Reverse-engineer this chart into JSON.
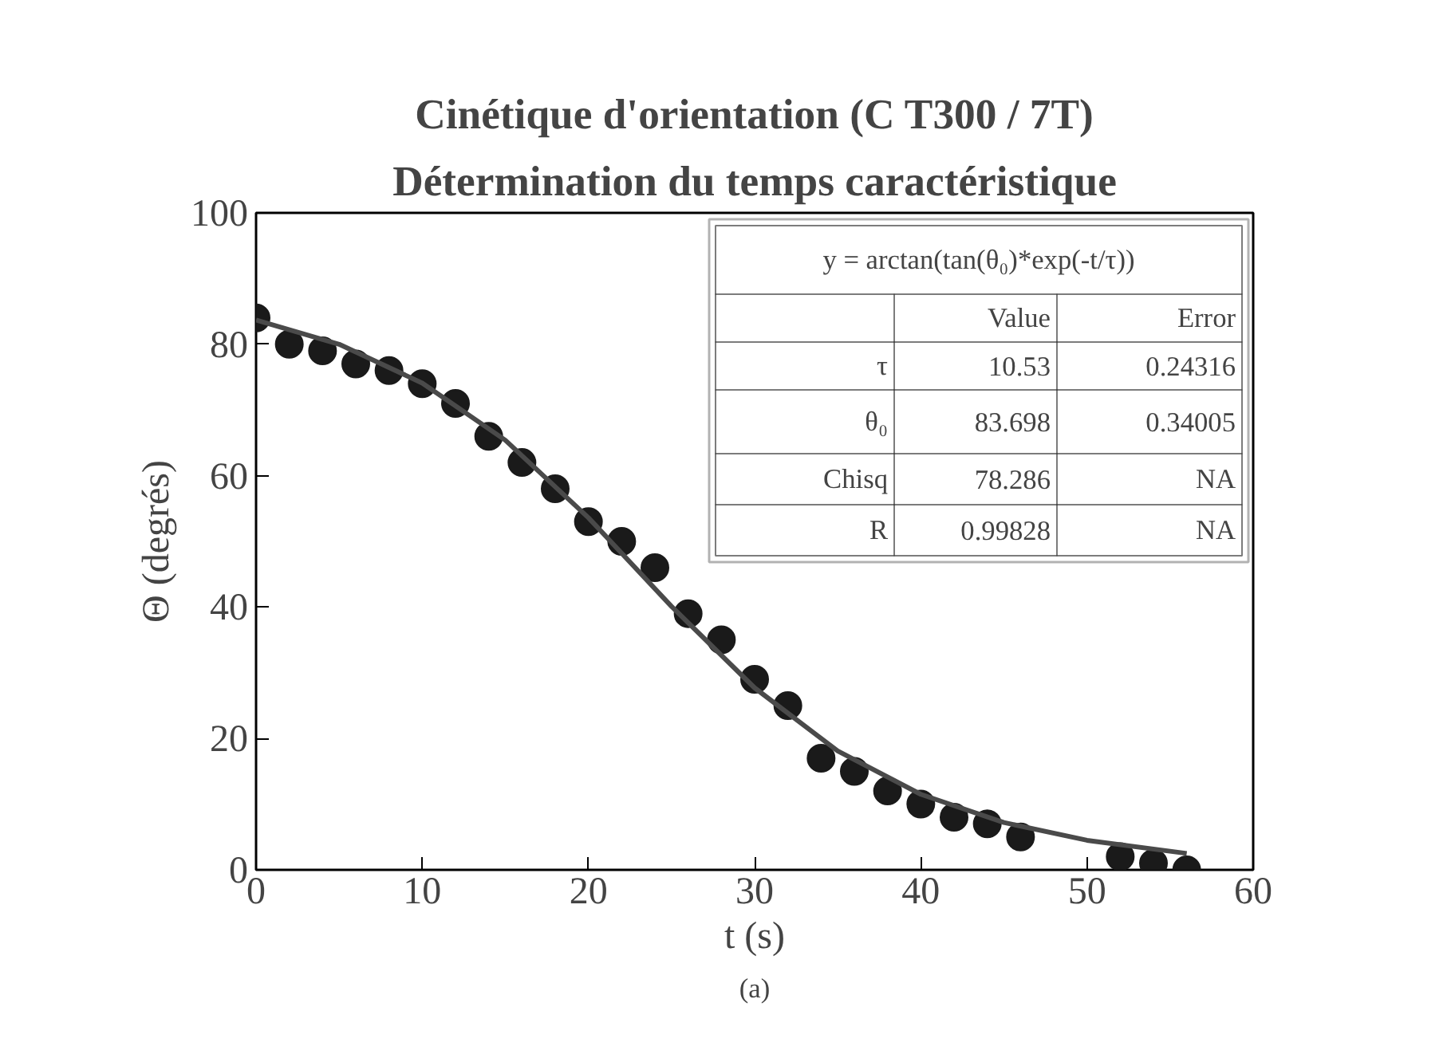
{
  "chart_data": {
    "type": "scatter",
    "title": "Cinétique d'orientation (C T300 / 7T)",
    "subtitle": "Détermination du temps caractéristique",
    "xlabel": "t (s)",
    "ylabel": "Θ (degrés)",
    "xlim": [
      0,
      60
    ],
    "xticks": [
      0,
      10,
      20,
      30,
      40,
      50,
      60
    ],
    "ylim": [
      0,
      100
    ],
    "yticks": [
      0,
      20,
      40,
      60,
      80,
      100
    ],
    "grid": false,
    "series": [
      {
        "marker": "circle",
        "color": "#1a1a1a",
        "x": [
          0,
          2,
          4,
          6,
          8,
          10,
          12,
          14,
          16,
          18,
          20,
          22,
          24,
          26,
          28,
          30,
          32,
          34,
          36,
          38,
          40,
          42,
          44,
          46,
          52,
          54,
          56
        ],
        "values": [
          84,
          80,
          79,
          77,
          76,
          74,
          71,
          66,
          62,
          58,
          53,
          50,
          46,
          39,
          35,
          29,
          25,
          17,
          15,
          12,
          10,
          8,
          7,
          5,
          2,
          1,
          0
        ]
      },
      {
        "type": "line",
        "color": "#4a4a4a",
        "x": [
          0,
          5,
          10,
          15,
          20,
          25,
          30,
          35,
          40,
          45,
          50,
          56
        ],
        "values": [
          83.7,
          80.0,
          74.1,
          65.4,
          53.6,
          40.1,
          27.7,
          18.1,
          11.5,
          7.2,
          4.5,
          2.5
        ]
      }
    ],
    "annotations": [
      "y = arctan(tan(θ₀)*exp(-t/τ))",
      "Value",
      "Error",
      "τ",
      "10.53",
      "0.24316",
      "θ₀",
      "83.698",
      "0.34005",
      "Chisq",
      "78.286",
      "NA",
      "R",
      "0.99828",
      "NA",
      "(a)"
    ]
  }
}
